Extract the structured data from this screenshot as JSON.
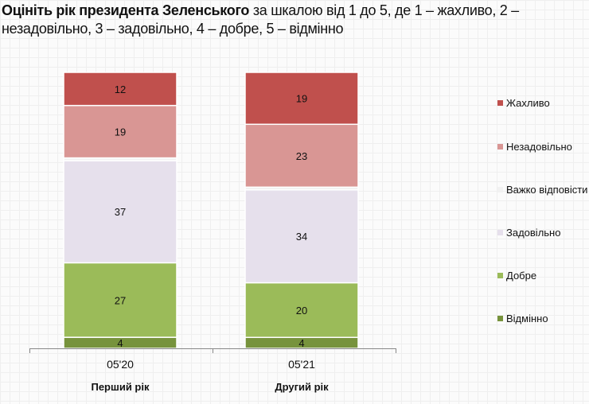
{
  "title": {
    "bold": "Оцініть рік президента Зеленського",
    "rest": " за шкалою від 1 до 5, де 1 – жахливо, 2 – незадовільно, 3 – задовільно, 4 – добре, 5 – відмінно"
  },
  "chart_data": {
    "type": "bar",
    "stacked": true,
    "categories": [
      "05'20",
      "05'21"
    ],
    "category_sublabels": [
      "Перший рік",
      "Другий рік"
    ],
    "series": [
      {
        "name": "Відмінно",
        "color": "#77933c",
        "values": [
          4,
          4
        ]
      },
      {
        "name": "Добре",
        "color": "#9bbb59",
        "values": [
          27,
          20
        ]
      },
      {
        "name": "Задовільно",
        "color": "#e6e0ec",
        "values": [
          37,
          34
        ]
      },
      {
        "name": "Важко відповісти",
        "color": "#f2f2f2",
        "values": [
          1,
          1
        ]
      },
      {
        "name": "Незадовільно",
        "color": "#d99694",
        "values": [
          19,
          23
        ]
      },
      {
        "name": "Жахливо",
        "color": "#c0504d",
        "values": [
          12,
          19
        ]
      }
    ],
    "legend_position": "right",
    "grid": false
  }
}
